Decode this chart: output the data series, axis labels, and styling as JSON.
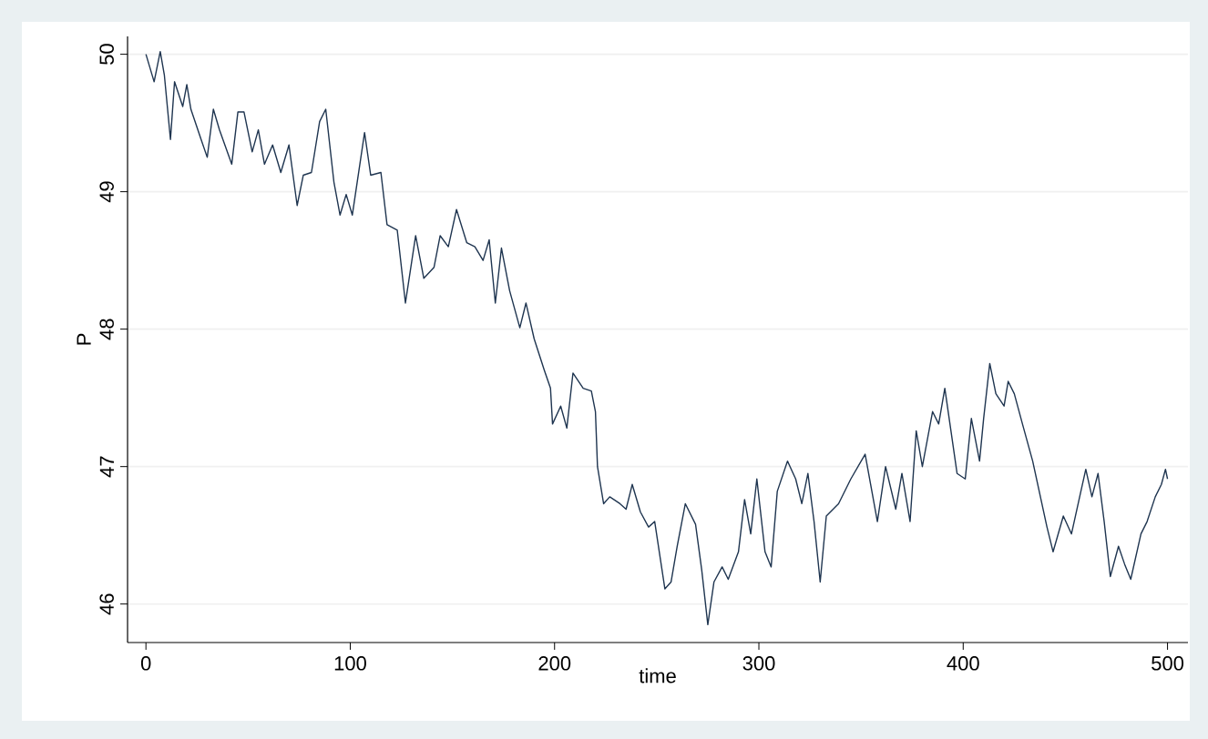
{
  "chart_data": {
    "type": "line",
    "xlabel": "time",
    "ylabel": "P",
    "xlim": [
      -9,
      510
    ],
    "ylim": [
      45.72,
      50.13
    ],
    "xticks": [
      0,
      100,
      200,
      300,
      400,
      500
    ],
    "yticks": [
      46,
      47,
      48,
      49,
      50
    ],
    "grid": "y",
    "marker": "none",
    "line_style": "solid",
    "series": [
      {
        "color": "#1f3550",
        "x": [
          0,
          4,
          7,
          9,
          12,
          14,
          18,
          20,
          22,
          27,
          30,
          33,
          36,
          42,
          45,
          48,
          52,
          55,
          58,
          62,
          66,
          70,
          74,
          77,
          81,
          85,
          88,
          92,
          95,
          98,
          101,
          107,
          110,
          115,
          118,
          123,
          127,
          132,
          136,
          141,
          144,
          148,
          152,
          157,
          161,
          165,
          168,
          171,
          174,
          178,
          183,
          186,
          190,
          195,
          198,
          199,
          203,
          206,
          209,
          214,
          218,
          220,
          221,
          224,
          227,
          232,
          235,
          238,
          242,
          246,
          249,
          254,
          257,
          260,
          264,
          269,
          272,
          275,
          278,
          282,
          285,
          290,
          293,
          296,
          299,
          303,
          306,
          309,
          314,
          318,
          321,
          324,
          327,
          330,
          333,
          339,
          345,
          352,
          358,
          362,
          367,
          370,
          374,
          377,
          380,
          385,
          388,
          391,
          394,
          397,
          401,
          404,
          408,
          410,
          413,
          416,
          420,
          422,
          425,
          429,
          434,
          441,
          444,
          449,
          453,
          457,
          460,
          463,
          466,
          469,
          472,
          476,
          479,
          482,
          487,
          490,
          494,
          497,
          499,
          500
        ],
        "values": [
          50.0,
          49.8,
          50.02,
          49.85,
          49.38,
          49.8,
          49.62,
          49.78,
          49.6,
          49.38,
          49.25,
          49.6,
          49.45,
          49.2,
          49.58,
          49.58,
          49.29,
          49.45,
          49.2,
          49.34,
          49.14,
          49.34,
          48.9,
          49.12,
          49.14,
          49.51,
          49.6,
          49.07,
          48.83,
          48.98,
          48.83,
          49.43,
          49.12,
          49.14,
          48.76,
          48.72,
          48.19,
          48.68,
          48.37,
          48.45,
          48.68,
          48.6,
          48.87,
          48.63,
          48.6,
          48.5,
          48.65,
          48.19,
          48.59,
          48.28,
          48.01,
          48.19,
          47.93,
          47.7,
          47.57,
          47.31,
          47.44,
          47.28,
          47.68,
          47.57,
          47.55,
          47.4,
          47.0,
          46.73,
          46.78,
          46.73,
          46.69,
          46.87,
          46.67,
          46.56,
          46.6,
          46.11,
          46.16,
          46.42,
          46.73,
          46.58,
          46.25,
          45.85,
          46.16,
          46.27,
          46.18,
          46.38,
          46.76,
          46.51,
          46.91,
          46.38,
          46.27,
          46.82,
          47.04,
          46.91,
          46.73,
          46.95,
          46.6,
          46.16,
          46.64,
          46.73,
          46.91,
          47.09,
          46.6,
          47.0,
          46.69,
          46.95,
          46.6,
          47.26,
          47.0,
          47.4,
          47.31,
          47.57,
          47.26,
          46.95,
          46.91,
          47.35,
          47.04,
          47.35,
          47.75,
          47.53,
          47.44,
          47.62,
          47.53,
          47.31,
          47.04,
          46.56,
          46.38,
          46.64,
          46.51,
          46.78,
          46.98,
          46.78,
          46.95,
          46.6,
          46.2,
          46.42,
          46.29,
          46.18,
          46.51,
          46.6,
          46.78,
          46.87,
          46.98,
          46.91
        ]
      }
    ]
  }
}
